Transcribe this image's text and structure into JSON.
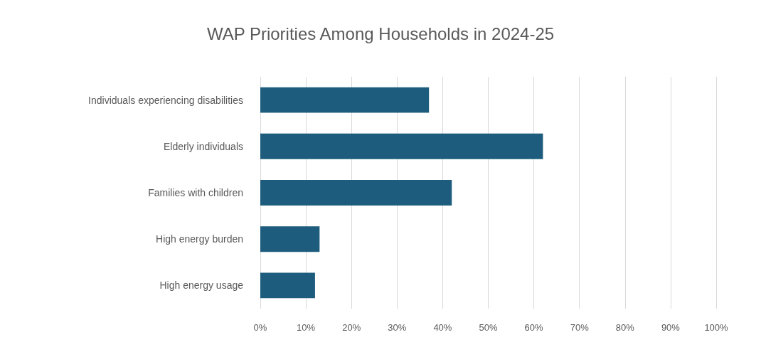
{
  "chart_data": {
    "type": "bar",
    "orientation": "horizontal",
    "title": "WAP Priorities Among Households in 2024-25",
    "categories": [
      "Individuals experiencing disabilities",
      "Elderly individuals",
      "Families with children",
      "High energy burden",
      "High energy usage"
    ],
    "values": [
      37,
      62,
      42,
      13,
      12
    ],
    "color": "#1d5c7c",
    "xlim": [
      0,
      100
    ],
    "xticks": [
      {
        "value": 0,
        "label": "0%"
      },
      {
        "value": 10,
        "label": "10%"
      },
      {
        "value": 20,
        "label": "20%"
      },
      {
        "value": 30,
        "label": "30%"
      },
      {
        "value": 40,
        "label": "40%"
      },
      {
        "value": 50,
        "label": "50%"
      },
      {
        "value": 60,
        "label": "60%"
      },
      {
        "value": 70,
        "label": "70%"
      },
      {
        "value": 80,
        "label": "80%"
      },
      {
        "value": 90,
        "label": "90%"
      },
      {
        "value": 100,
        "label": "100%"
      }
    ],
    "grid": "x"
  }
}
